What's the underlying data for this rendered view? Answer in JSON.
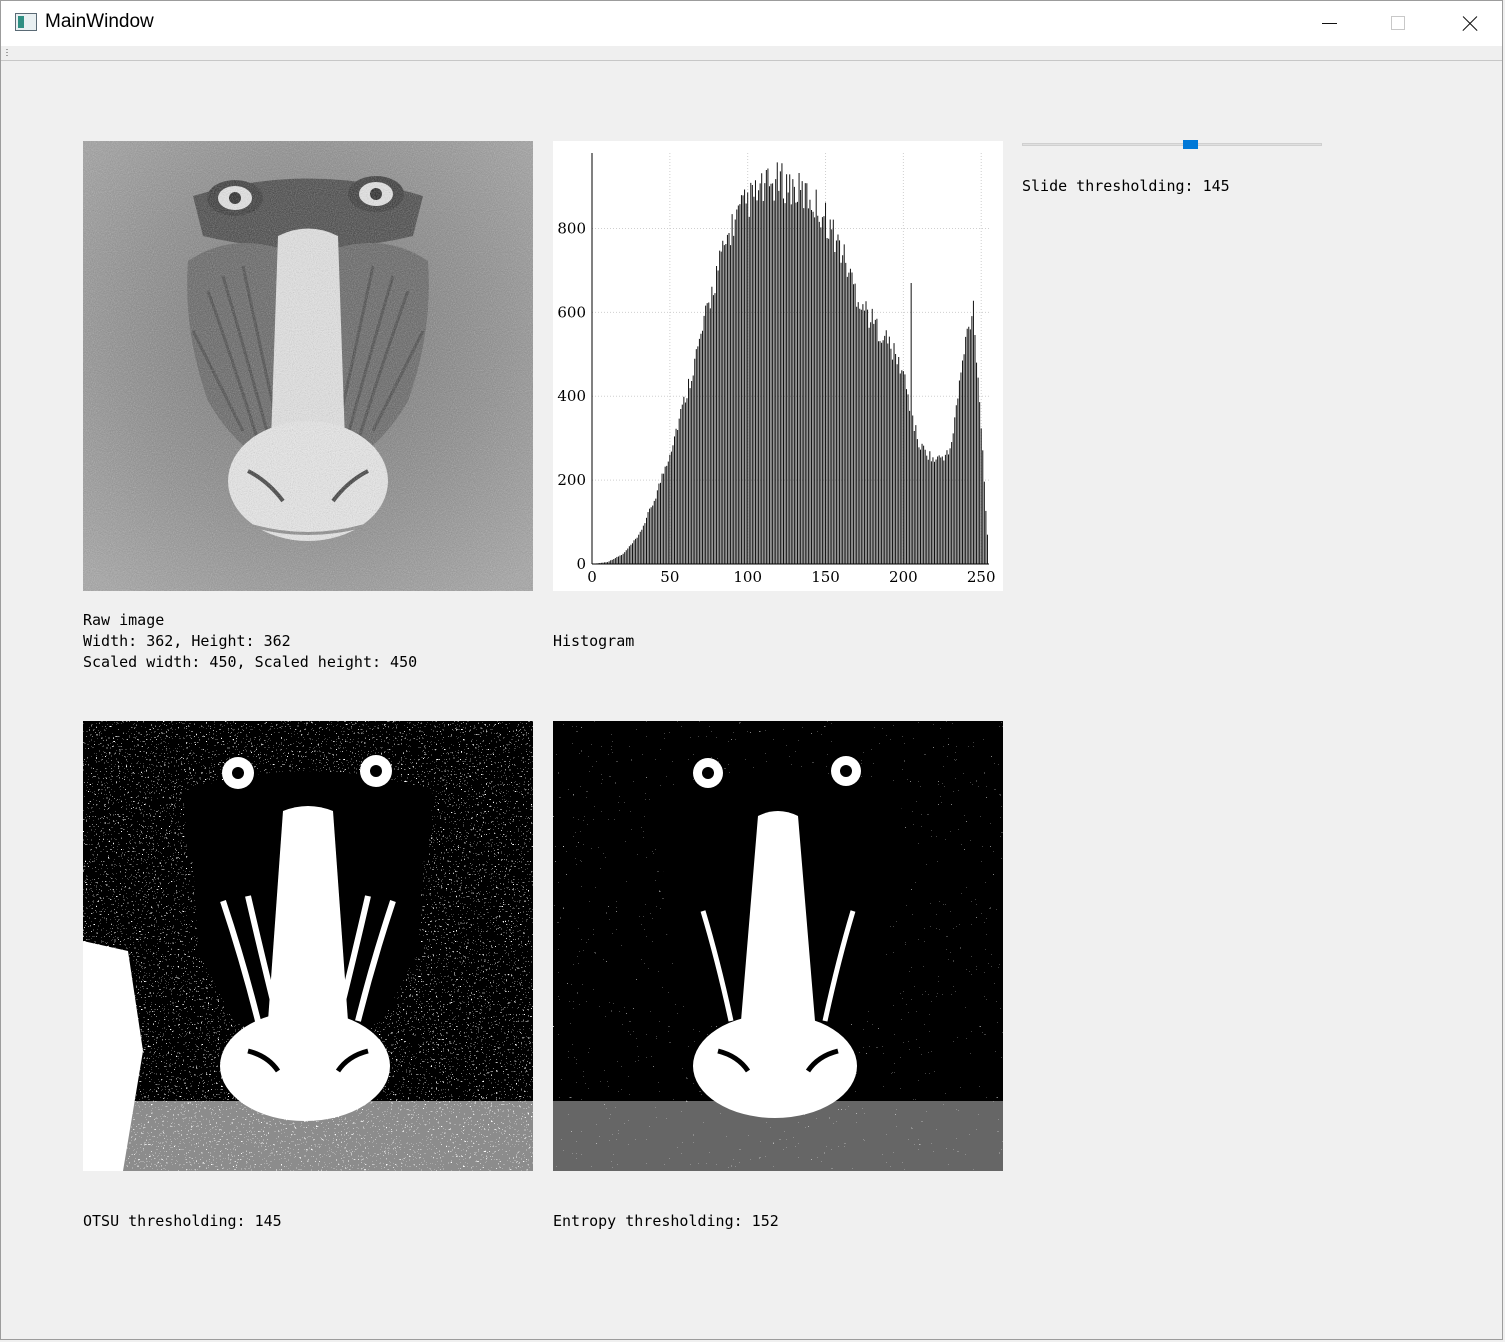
{
  "window": {
    "title": "MainWindow",
    "controls": [
      "minimize",
      "maximize",
      "close"
    ],
    "accent": "#0078d7"
  },
  "raw": {
    "caption": "Raw image",
    "size": "Width: 362, Height: 362",
    "scaled": "Scaled width: 450, Scaled height: 450"
  },
  "histogram": {
    "caption": "Histogram"
  },
  "slider": {
    "value": 145,
    "range": [
      0,
      255
    ],
    "label": "Slide thresholding: 145"
  },
  "otsu": {
    "label": "OTSU thresholding: 145"
  },
  "entropy": {
    "label": "Entropy thresholding: 152"
  },
  "chart_data": {
    "type": "bar",
    "xlabel": "",
    "ylabel": "",
    "xlim": [
      0,
      255
    ],
    "ylim": [
      0,
      980
    ],
    "xticks": [
      0,
      50,
      100,
      150,
      200,
      250
    ],
    "yticks": [
      0,
      200,
      400,
      600,
      800
    ],
    "grid": "dotted vertical and horizontal",
    "x": [
      0,
      10,
      20,
      30,
      40,
      50,
      60,
      70,
      80,
      90,
      100,
      110,
      120,
      125,
      130,
      140,
      150,
      160,
      170,
      180,
      190,
      200,
      205,
      210,
      220,
      230,
      240,
      245,
      250,
      255
    ],
    "values": [
      0,
      5,
      25,
      70,
      160,
      280,
      420,
      570,
      730,
      850,
      910,
      940,
      960,
      955,
      940,
      920,
      870,
      790,
      680,
      610,
      560,
      480,
      380,
      300,
      260,
      280,
      560,
      650,
      350,
      0
    ]
  }
}
